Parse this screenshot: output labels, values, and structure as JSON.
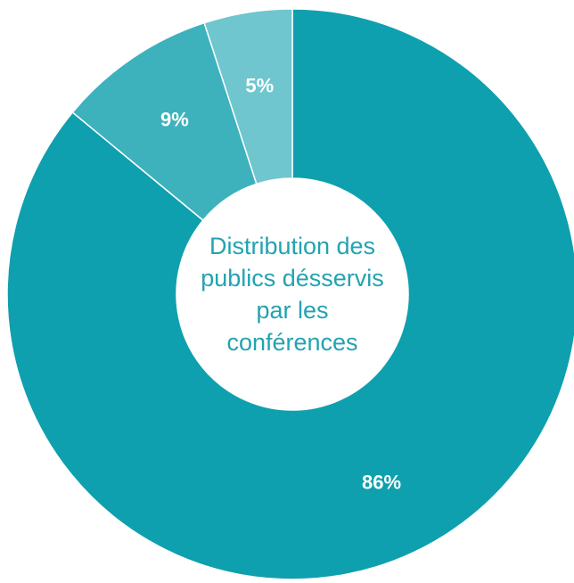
{
  "chart_data": {
    "type": "donut",
    "title": "Distribution des publics désservis par les conférences",
    "values": [
      86,
      9,
      5
    ],
    "value_labels": [
      "86%",
      "9%",
      "5%"
    ],
    "colors": [
      "#0ea0ae",
      "#3db2bd",
      "#6fc6ce"
    ]
  }
}
